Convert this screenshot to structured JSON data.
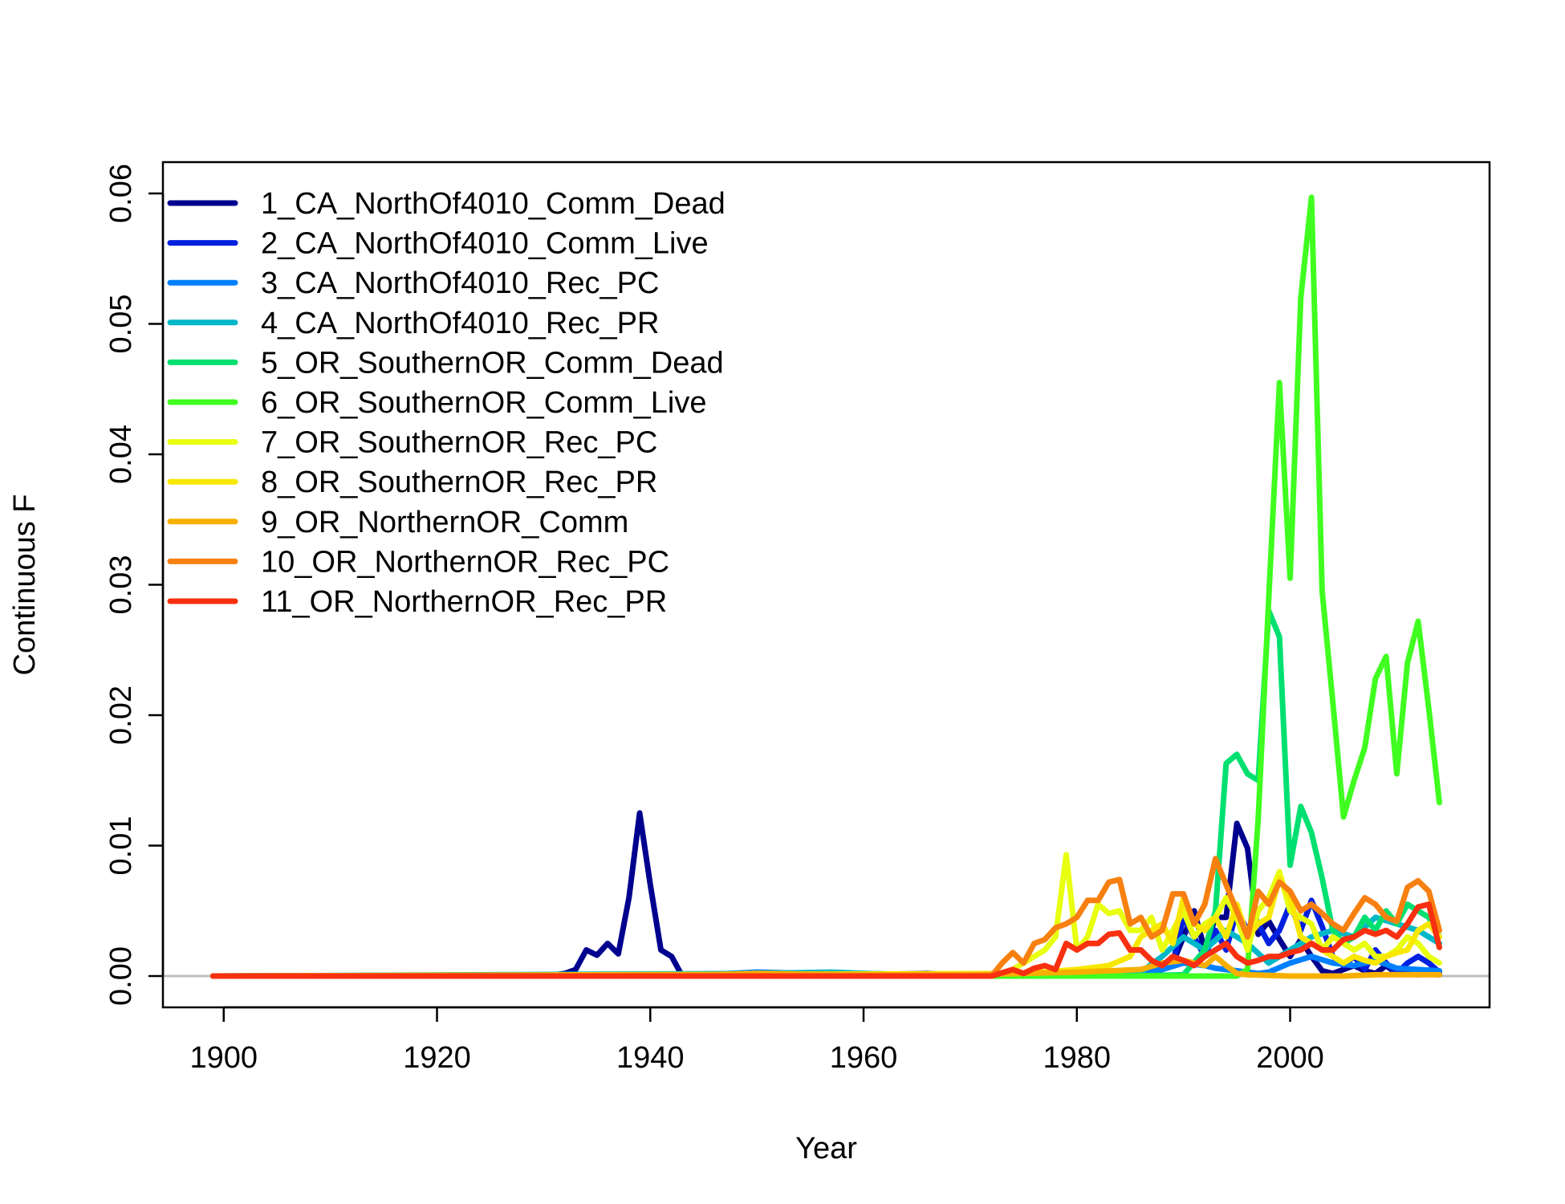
{
  "chart_data": {
    "type": "line",
    "title": "",
    "xlabel": "Year",
    "ylabel": "Continuous F",
    "xlim": [
      1894.3,
      2018.7
    ],
    "ylim": [
      -0.0024,
      0.0624
    ],
    "xticks": [
      1900,
      1920,
      1940,
      1960,
      1980,
      2000
    ],
    "yticks": [
      0.0,
      0.01,
      0.02,
      0.03,
      0.04,
      0.05,
      0.06
    ],
    "ytick_labels": [
      "0.00",
      "0.01",
      "0.02",
      "0.03",
      "0.04",
      "0.05",
      "0.06"
    ],
    "baseline": 0,
    "grid": false,
    "legend_position": "top-left",
    "series": [
      {
        "name": "1_CA_NorthOf4010_Comm_Dead",
        "color": "#00008f",
        "x": [
          1899,
          1930,
          1932,
          1933,
          1934,
          1935,
          1936,
          1937,
          1938,
          1939,
          1940,
          1941,
          1942,
          1943,
          1946,
          1950,
          1960,
          1966,
          1970,
          1980,
          1986,
          1988,
          1989,
          1990,
          1991,
          1992,
          1993,
          1994,
          1995,
          1996,
          1997,
          1998,
          1999,
          2000,
          2001,
          2002,
          2003,
          2004,
          2005,
          2006,
          2007,
          2008,
          2009,
          2010,
          2011,
          2012,
          2013,
          2014
        ],
        "y": [
          0,
          0,
          0.0002,
          0.0005,
          0.002,
          0.0016,
          0.0025,
          0.0017,
          0.006,
          0.0125,
          0.007,
          0.002,
          0.0015,
          0,
          0,
          0.0002,
          0.0001,
          0.0002,
          0,
          0,
          0.0002,
          0.0008,
          0.001,
          0.003,
          0.005,
          0.002,
          0.0045,
          0.0045,
          0.0117,
          0.0098,
          0.0032,
          0.0042,
          0.0028,
          0.0015,
          0.0028,
          0.0015,
          0.0004,
          0.0002,
          0.0005,
          0.0008,
          0.0004,
          0.0002,
          0.0008,
          0.0002,
          0.0002,
          0.0001,
          0.0002,
          0.0001
        ]
      },
      {
        "name": "2_CA_NorthOf4010_Comm_Live",
        "color": "#0020e0",
        "x": [
          1899,
          1985,
          1988,
          1989,
          1990,
          1991,
          1992,
          1993,
          1994,
          1995,
          1996,
          1997,
          1998,
          1999,
          2000,
          2001,
          2002,
          2003,
          2004,
          2005,
          2006,
          2007,
          2008,
          2009,
          2010,
          2011,
          2012,
          2013,
          2014
        ],
        "y": [
          0,
          0,
          0.0005,
          0.001,
          0.0045,
          0.003,
          0.0015,
          0.0035,
          0.002,
          0.005,
          0.0035,
          0.004,
          0.0025,
          0.0035,
          0.0055,
          0.0035,
          0.0058,
          0.0038,
          0.0015,
          0.0008,
          0.0015,
          0.0005,
          0.002,
          0.001,
          0.0002,
          0.001,
          0.0015,
          0.001,
          0.0003
        ]
      },
      {
        "name": "3_CA_NorthOf4010_Rec_PC",
        "color": "#0080ff",
        "x": [
          1899,
          1945,
          1950,
          1955,
          1960,
          1965,
          1970,
          1980,
          1985,
          1988,
          1990,
          1992,
          1993,
          1995,
          1997,
          1998,
          2000,
          2002,
          2004,
          2006,
          2008,
          2010,
          2012,
          2014
        ],
        "y": [
          0,
          0.0001,
          0.0003,
          0.0002,
          0.0002,
          0.0001,
          0.0001,
          0.0001,
          0.0002,
          0.0005,
          0.001,
          0.0008,
          0.0006,
          0.0004,
          0.0002,
          0.0003,
          0.001,
          0.0015,
          0.001,
          0.0008,
          0.0012,
          0.0006,
          0.0005,
          0.0004
        ]
      },
      {
        "name": "4_CA_NorthOf4010_Rec_PR",
        "color": "#00b8c8",
        "x": [
          1899,
          1950,
          1957,
          1960,
          1965,
          1970,
          1980,
          1983,
          1986,
          1988,
          1990,
          1992,
          1994,
          1996,
          1998,
          2000,
          2002,
          2004,
          2006,
          2008,
          2010,
          2012,
          2014
        ],
        "y": [
          0,
          0.0002,
          0.0003,
          0.0002,
          0.0001,
          0.0001,
          0.0001,
          0.0004,
          0.0003,
          0.0015,
          0.003,
          0.002,
          0.0035,
          0.0025,
          0.001,
          0.002,
          0.003,
          0.0035,
          0.003,
          0.0045,
          0.004,
          0.0035,
          0.0025
        ]
      },
      {
        "name": "5_OR_SouthernOR_Comm_Dead",
        "color": "#00e070",
        "x": [
          1899,
          1985,
          1990,
          1992,
          1993,
          1994,
          1995,
          1996,
          1997,
          1998,
          1999,
          2000,
          2001,
          2002,
          2003,
          2004,
          2005,
          2006,
          2007,
          2008,
          2009,
          2010,
          2011,
          2012,
          2013,
          2014
        ],
        "y": [
          0,
          0,
          0.0001,
          0.002,
          0.005,
          0.0163,
          0.017,
          0.0155,
          0.015,
          0.028,
          0.026,
          0.0085,
          0.013,
          0.011,
          0.0075,
          0.0035,
          0.0025,
          0.003,
          0.0045,
          0.0035,
          0.005,
          0.004,
          0.0055,
          0.005,
          0.0045,
          0.003
        ]
      },
      {
        "name": "6_OR_SouthernOR_Comm_Live",
        "color": "#40ff20",
        "x": [
          1899,
          1995,
          1996,
          1997,
          1998,
          1999,
          2000,
          2001,
          2002,
          2003,
          2004,
          2005,
          2006,
          2007,
          2008,
          2009,
          2010,
          2011,
          2012,
          2013,
          2014
        ],
        "y": [
          0,
          0,
          0.0005,
          0.012,
          0.029,
          0.0455,
          0.0305,
          0.052,
          0.0597,
          0.0295,
          0.021,
          0.0122,
          0.015,
          0.0175,
          0.0228,
          0.0245,
          0.0155,
          0.024,
          0.0272,
          0.0205,
          0.0133
        ]
      },
      {
        "name": "7_OR_SouthernOR_Rec_PC",
        "color": "#e8ff10",
        "x": [
          1899,
          1972,
          1974,
          1976,
          1977,
          1978,
          1979,
          1980,
          1981,
          1982,
          1983,
          1984,
          1985,
          1986,
          1987,
          1988,
          1989,
          1990,
          1991,
          1992,
          1993,
          1994,
          1995,
          1996,
          1997,
          1998,
          1999,
          2000,
          2001,
          2002,
          2003,
          2004,
          2005,
          2006,
          2007,
          2008,
          2009,
          2010,
          2011,
          2012,
          2013,
          2014
        ],
        "y": [
          0,
          0,
          0.0005,
          0.0015,
          0.002,
          0.003,
          0.0093,
          0.002,
          0.003,
          0.0055,
          0.0048,
          0.005,
          0.0035,
          0.0035,
          0.0045,
          0.002,
          0.0035,
          0.005,
          0.003,
          0.004,
          0.0045,
          0.006,
          0.0045,
          0.002,
          0.005,
          0.006,
          0.008,
          0.005,
          0.0045,
          0.004,
          0.002,
          0.003,
          0.0025,
          0.002,
          0.0025,
          0.0015,
          0.0015,
          0.002,
          0.003,
          0.0025,
          0.0015,
          0.001
        ]
      },
      {
        "name": "8_OR_SouthernOR_Rec_PR",
        "color": "#f8e800",
        "x": [
          1899,
          1975,
          1980,
          1983,
          1985,
          1986,
          1988,
          1989,
          1990,
          1991,
          1992,
          1993,
          1994,
          1995,
          1996,
          1997,
          1998,
          1999,
          2000,
          2001,
          2002,
          2003,
          2004,
          2005,
          2006,
          2007,
          2008,
          2009,
          2010,
          2011,
          2012,
          2013,
          2014
        ],
        "y": [
          0,
          0.0002,
          0.0005,
          0.0008,
          0.0015,
          0.003,
          0.004,
          0.0025,
          0.006,
          0.004,
          0.0035,
          0.0045,
          0.003,
          0.0055,
          0.003,
          0.004,
          0.0045,
          0.0075,
          0.006,
          0.003,
          0.0025,
          0.002,
          0.0015,
          0.001,
          0.0015,
          0.0012,
          0.001,
          0.0015,
          0.0018,
          0.002,
          0.0035,
          0.004,
          0.003
        ]
      },
      {
        "name": "9_OR_NorthernOR_Comm",
        "color": "#f8b000",
        "x": [
          1899,
          1945,
          1950,
          1960,
          1970,
          1980,
          1986,
          1988,
          1990,
          1992,
          1993,
          1994,
          1995,
          1996,
          2000,
          2005,
          2008,
          2010,
          2014
        ],
        "y": [
          0,
          0.0001,
          0.0002,
          0.0001,
          0.0001,
          0.0003,
          0.0005,
          0.001,
          0.0012,
          0.0008,
          0.0015,
          0.0008,
          0.0002,
          0.0001,
          0,
          0,
          0.0001,
          0.0001,
          0.0001
        ]
      },
      {
        "name": "10_OR_NorthernOR_Rec_PC",
        "color": "#f88010",
        "x": [
          1899,
          1972,
          1973,
          1974,
          1975,
          1976,
          1977,
          1978,
          1979,
          1980,
          1981,
          1982,
          1983,
          1984,
          1985,
          1986,
          1987,
          1988,
          1989,
          1990,
          1991,
          1992,
          1993,
          1994,
          1995,
          1996,
          1997,
          1998,
          1999,
          2000,
          2001,
          2002,
          2003,
          2004,
          2005,
          2006,
          2007,
          2008,
          2009,
          2010,
          2011,
          2012,
          2013,
          2014
        ],
        "y": [
          0,
          0,
          0.001,
          0.0018,
          0.001,
          0.0025,
          0.0028,
          0.0037,
          0.004,
          0.0045,
          0.0058,
          0.0058,
          0.0072,
          0.0074,
          0.004,
          0.0045,
          0.003,
          0.0035,
          0.0063,
          0.0063,
          0.004,
          0.0055,
          0.009,
          0.007,
          0.005,
          0.003,
          0.0065,
          0.0055,
          0.0072,
          0.0065,
          0.005,
          0.0055,
          0.0048,
          0.004,
          0.0035,
          0.0048,
          0.006,
          0.0055,
          0.0045,
          0.0042,
          0.0068,
          0.0073,
          0.0065,
          0.0035
        ]
      },
      {
        "name": "11_OR_NorthernOR_Rec_PR",
        "color": "#f83010",
        "x": [
          1899,
          1972,
          1974,
          1975,
          1976,
          1977,
          1978,
          1979,
          1980,
          1981,
          1982,
          1983,
          1984,
          1985,
          1986,
          1987,
          1988,
          1989,
          1990,
          1991,
          1992,
          1993,
          1994,
          1995,
          1996,
          1997,
          1998,
          1999,
          2000,
          2001,
          2002,
          2003,
          2004,
          2005,
          2006,
          2007,
          2008,
          2009,
          2010,
          2011,
          2012,
          2013,
          2014
        ],
        "y": [
          0,
          0,
          0.0005,
          0.0002,
          0.0006,
          0.0008,
          0.0005,
          0.0025,
          0.002,
          0.0025,
          0.0025,
          0.0032,
          0.0033,
          0.002,
          0.002,
          0.0012,
          0.0008,
          0.0015,
          0.0012,
          0.0008,
          0.0015,
          0.002,
          0.0025,
          0.0015,
          0.001,
          0.0012,
          0.0015,
          0.0015,
          0.0018,
          0.002,
          0.0025,
          0.002,
          0.002,
          0.0028,
          0.003,
          0.0035,
          0.0032,
          0.0035,
          0.003,
          0.004,
          0.0053,
          0.0055,
          0.0022
        ]
      }
    ]
  }
}
